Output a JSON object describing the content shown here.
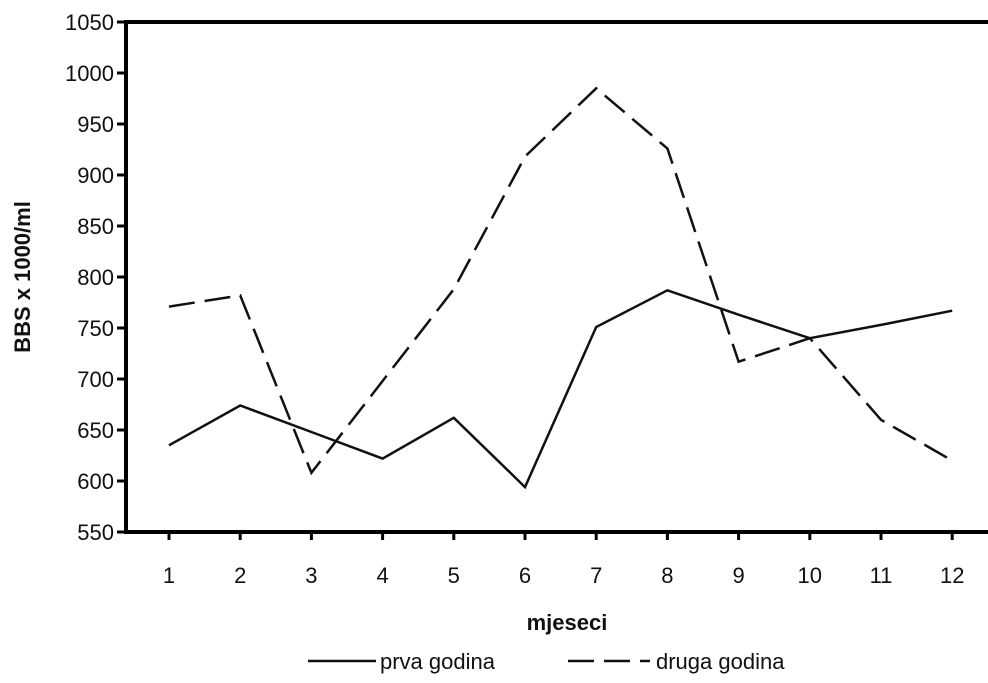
{
  "chart_data": {
    "type": "line",
    "title": "",
    "xlabel": "mjeseci",
    "ylabel": "BBS x 1000/ml",
    "x": [
      1,
      2,
      3,
      4,
      5,
      6,
      7,
      8,
      9,
      10,
      11,
      12
    ],
    "x_tick_labels": [
      "1",
      "2",
      "3",
      "4",
      "5",
      "6",
      "7",
      "8",
      "9",
      "10",
      "11",
      "12"
    ],
    "y_tick_labels": [
      "550",
      "600",
      "650",
      "700",
      "750",
      "800",
      "850",
      "900",
      "950",
      "1000",
      "1050"
    ],
    "ylim": [
      550,
      1050
    ],
    "grid": false,
    "legend_position": "bottom",
    "series": [
      {
        "name": "prva godina",
        "style": "solid",
        "values": [
          635,
          674,
          648,
          622,
          662,
          594,
          751,
          787,
          763,
          740,
          753,
          767
        ]
      },
      {
        "name": "druga godina",
        "style": "dashed",
        "values": [
          771,
          782,
          608,
          698,
          788,
          918,
          985,
          926,
          717,
          740,
          660,
          620
        ]
      }
    ],
    "colors": {
      "line": "#111111",
      "axis": "#000000"
    }
  }
}
